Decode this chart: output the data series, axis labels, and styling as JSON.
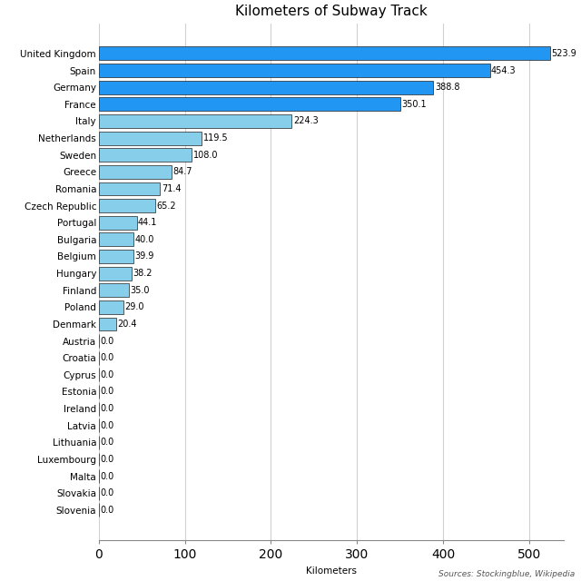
{
  "title": "Kilometers of Subway Track",
  "xlabel": "Kilometers",
  "source": "Sources: Stockingblue, Wikipedia",
  "countries": [
    "United Kingdom",
    "Spain",
    "Germany",
    "France",
    "Italy",
    "Netherlands",
    "Sweden",
    "Greece",
    "Romania",
    "Czech Republic",
    "Portugal",
    "Bulgaria",
    "Belgium",
    "Hungary",
    "Finland",
    "Poland",
    "Denmark",
    "Austria",
    "Croatia",
    "Cyprus",
    "Estonia",
    "Ireland",
    "Latvia",
    "Lithuania",
    "Luxembourg",
    "Malta",
    "Slovakia",
    "Slovenia"
  ],
  "values": [
    523.9,
    454.3,
    388.8,
    350.1,
    224.3,
    119.5,
    108.0,
    84.7,
    71.4,
    65.2,
    44.1,
    40.0,
    39.9,
    38.2,
    35.0,
    29.0,
    20.4,
    0.0,
    0.0,
    0.0,
    0.0,
    0.0,
    0.0,
    0.0,
    0.0,
    0.0,
    0.0,
    0.0
  ],
  "colors": [
    "#2196F3",
    "#2196F3",
    "#2196F3",
    "#2196F3",
    "#87CEEB",
    "#87CEEB",
    "#87CEEB",
    "#87CEEB",
    "#87CEEB",
    "#87CEEB",
    "#87CEEB",
    "#87CEEB",
    "#87CEEB",
    "#87CEEB",
    "#87CEEB",
    "#87CEEB",
    "#87CEEB",
    "#87CEEB",
    "#87CEEB",
    "#87CEEB",
    "#87CEEB",
    "#87CEEB",
    "#87CEEB",
    "#87CEEB",
    "#87CEEB",
    "#87CEEB",
    "#87CEEB",
    "#87CEEB"
  ],
  "xlim": [
    0,
    540
  ],
  "xticks": [
    0,
    100,
    200,
    300,
    400,
    500
  ],
  "background_color": "#ffffff",
  "grid_color": "#d0d0d0",
  "title_fontsize": 11,
  "label_fontsize": 7.5,
  "value_fontsize": 7,
  "source_fontsize": 6.5
}
